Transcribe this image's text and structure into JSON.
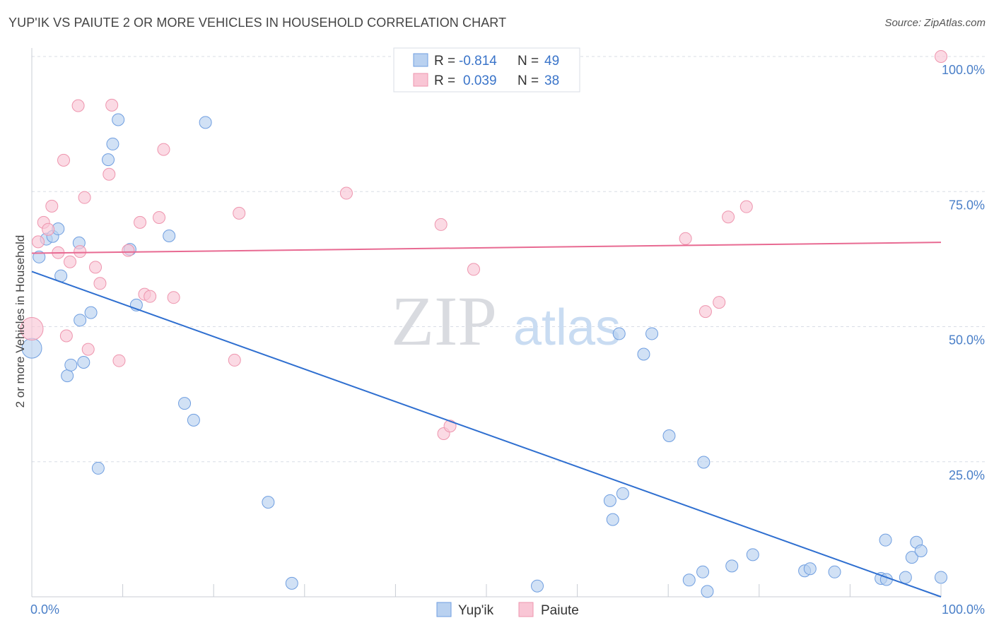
{
  "title": "YUP'IK VS PAIUTE 2 OR MORE VEHICLES IN HOUSEHOLD CORRELATION CHART",
  "source": "Source: ZipAtlas.com",
  "watermark": {
    "zip": "ZIP",
    "atlas": "atlas"
  },
  "colors": {
    "blue_fill": "#b9d1f0",
    "blue_stroke": "#6f9ee0",
    "blue_line": "#2f6fd0",
    "pink_fill": "#f9c6d5",
    "pink_stroke": "#ee95ae",
    "pink_line": "#e86a92",
    "grid": "#d8dde6",
    "axis_text": "#4a7fc8"
  },
  "legend": {
    "rows": [
      {
        "r_label": "R =",
        "r_value": "-0.814",
        "n_label": "N =",
        "n_value": "49"
      },
      {
        "r_label": "R =",
        "r_value": "0.039",
        "n_label": "N =",
        "n_value": "38"
      }
    ]
  },
  "chart_data": {
    "type": "scatter",
    "title": "YUP'IK VS PAIUTE 2 OR MORE VEHICLES IN HOUSEHOLD CORRELATION CHART",
    "xlabel": "",
    "ylabel": "2 or more Vehicles in Household",
    "xlim": [
      0,
      100
    ],
    "ylim": [
      0,
      100
    ],
    "x_tick_labels": {
      "min": "0.0%",
      "max": "100.0%"
    },
    "y_tick_labels": [
      {
        "value": 100,
        "label": "100.0%"
      },
      {
        "value": 75,
        "label": "75.0%"
      },
      {
        "value": 50,
        "label": "50.0%"
      },
      {
        "value": 25,
        "label": "25.0%"
      }
    ],
    "series": [
      {
        "name": "Yup'ik",
        "color": "blue",
        "r": -0.814,
        "n": 49,
        "trend": {
          "x": [
            0,
            100
          ],
          "y": [
            60.2,
            0
          ]
        },
        "points": [
          {
            "x": 0.0,
            "y": 46.0,
            "size": 14
          },
          {
            "x": 0.8,
            "y": 62.9
          },
          {
            "x": 1.6,
            "y": 66.2
          },
          {
            "x": 2.3,
            "y": 66.7
          },
          {
            "x": 2.9,
            "y": 68.1
          },
          {
            "x": 3.2,
            "y": 59.4
          },
          {
            "x": 3.9,
            "y": 40.9
          },
          {
            "x": 4.3,
            "y": 42.9
          },
          {
            "x": 5.2,
            "y": 65.5
          },
          {
            "x": 5.3,
            "y": 51.2
          },
          {
            "x": 5.7,
            "y": 43.4
          },
          {
            "x": 6.5,
            "y": 52.6
          },
          {
            "x": 7.3,
            "y": 23.8
          },
          {
            "x": 8.4,
            "y": 80.9
          },
          {
            "x": 8.9,
            "y": 83.8
          },
          {
            "x": 9.5,
            "y": 88.3
          },
          {
            "x": 10.8,
            "y": 64.3
          },
          {
            "x": 11.5,
            "y": 54.0
          },
          {
            "x": 15.1,
            "y": 66.8
          },
          {
            "x": 16.8,
            "y": 35.8
          },
          {
            "x": 17.8,
            "y": 32.7
          },
          {
            "x": 19.1,
            "y": 87.8
          },
          {
            "x": 26.0,
            "y": 17.5
          },
          {
            "x": 28.6,
            "y": 2.5
          },
          {
            "x": 55.6,
            "y": 2.0
          },
          {
            "x": 63.6,
            "y": 17.8
          },
          {
            "x": 63.9,
            "y": 14.3
          },
          {
            "x": 65.0,
            "y": 19.1
          },
          {
            "x": 64.6,
            "y": 48.7
          },
          {
            "x": 67.3,
            "y": 44.9
          },
          {
            "x": 68.2,
            "y": 48.7
          },
          {
            "x": 70.1,
            "y": 29.8
          },
          {
            "x": 72.3,
            "y": 3.1
          },
          {
            "x": 73.9,
            "y": 24.9
          },
          {
            "x": 73.8,
            "y": 4.6
          },
          {
            "x": 74.3,
            "y": 1.0
          },
          {
            "x": 77.0,
            "y": 5.7
          },
          {
            "x": 79.3,
            "y": 7.8
          },
          {
            "x": 85.0,
            "y": 4.8
          },
          {
            "x": 85.6,
            "y": 5.2
          },
          {
            "x": 88.3,
            "y": 4.6
          },
          {
            "x": 93.4,
            "y": 3.4
          },
          {
            "x": 93.9,
            "y": 10.5
          },
          {
            "x": 94.0,
            "y": 3.2
          },
          {
            "x": 96.1,
            "y": 3.6
          },
          {
            "x": 96.8,
            "y": 7.3
          },
          {
            "x": 97.3,
            "y": 10.1
          },
          {
            "x": 97.8,
            "y": 8.5
          },
          {
            "x": 100.0,
            "y": 3.6
          }
        ]
      },
      {
        "name": "Paiute",
        "color": "pink",
        "r": 0.039,
        "n": 38,
        "trend": {
          "x": [
            0,
            100
          ],
          "y": [
            63.6,
            65.6
          ]
        },
        "points": [
          {
            "x": 0.0,
            "y": 49.6,
            "size": 16
          },
          {
            "x": 0.7,
            "y": 65.7
          },
          {
            "x": 1.3,
            "y": 69.3
          },
          {
            "x": 1.8,
            "y": 68.0
          },
          {
            "x": 2.2,
            "y": 72.3
          },
          {
            "x": 2.9,
            "y": 63.7
          },
          {
            "x": 3.5,
            "y": 80.8
          },
          {
            "x": 3.8,
            "y": 48.3
          },
          {
            "x": 4.2,
            "y": 62.0
          },
          {
            "x": 5.1,
            "y": 90.9
          },
          {
            "x": 5.3,
            "y": 63.9
          },
          {
            "x": 5.8,
            "y": 73.9
          },
          {
            "x": 6.2,
            "y": 45.8
          },
          {
            "x": 7.0,
            "y": 61.0
          },
          {
            "x": 7.5,
            "y": 58.0
          },
          {
            "x": 8.5,
            "y": 78.2
          },
          {
            "x": 8.8,
            "y": 91.0
          },
          {
            "x": 9.6,
            "y": 43.7
          },
          {
            "x": 10.6,
            "y": 64.1
          },
          {
            "x": 11.9,
            "y": 69.3
          },
          {
            "x": 12.4,
            "y": 56.0
          },
          {
            "x": 13.0,
            "y": 55.6
          },
          {
            "x": 14.0,
            "y": 70.2
          },
          {
            "x": 14.5,
            "y": 82.8
          },
          {
            "x": 15.6,
            "y": 55.4
          },
          {
            "x": 22.3,
            "y": 43.8
          },
          {
            "x": 22.8,
            "y": 71.0
          },
          {
            "x": 34.6,
            "y": 74.7
          },
          {
            "x": 45.0,
            "y": 68.9
          },
          {
            "x": 45.3,
            "y": 30.2
          },
          {
            "x": 46.0,
            "y": 31.6
          },
          {
            "x": 48.6,
            "y": 60.6
          },
          {
            "x": 71.9,
            "y": 66.3
          },
          {
            "x": 74.1,
            "y": 52.8
          },
          {
            "x": 75.6,
            "y": 54.5
          },
          {
            "x": 76.6,
            "y": 70.3
          },
          {
            "x": 78.6,
            "y": 72.2
          },
          {
            "x": 100.0,
            "y": 100.0
          }
        ]
      }
    ]
  }
}
